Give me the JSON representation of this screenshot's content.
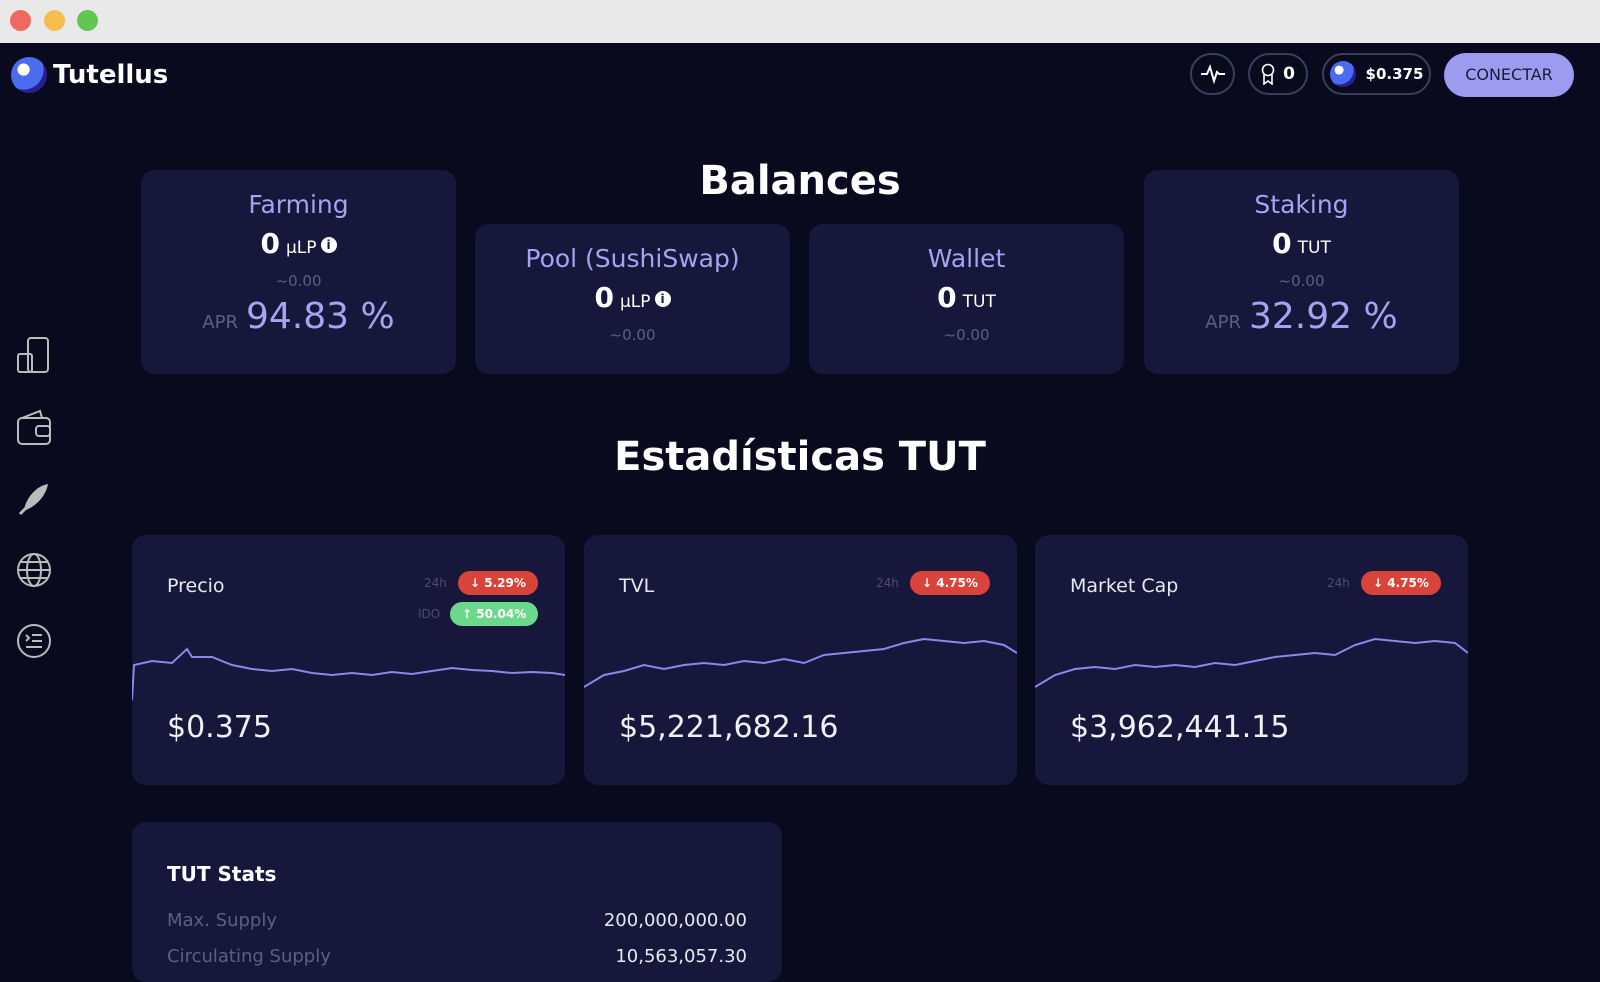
{
  "header": {
    "brand": "Tutellus",
    "badges_count": "0",
    "price": "$0.375",
    "connect": "CONECTAR"
  },
  "balances": {
    "title": "Balances",
    "cards": [
      {
        "title": "Farming",
        "amount": "0",
        "unit": "μLP",
        "approx": "~0.00",
        "apr_label": "APR",
        "apr": "94.83 %"
      },
      {
        "title": "Pool (SushiSwap)",
        "amount": "0",
        "unit": "μLP",
        "approx": "~0.00"
      },
      {
        "title": "Wallet",
        "amount": "0",
        "unit": "TUT",
        "approx": "~0.00"
      },
      {
        "title": "Staking",
        "amount": "0",
        "unit": "TUT",
        "approx": "~0.00",
        "apr_label": "APR",
        "apr": "32.92 %"
      }
    ]
  },
  "stats": {
    "title": "Estadísticas TUT",
    "cards": [
      {
        "title": "Precio",
        "period": "24h",
        "change": "↓ 5.29%",
        "ido_label": "IDO",
        "ido_change": "↑ 50.04%",
        "value": "$0.375"
      },
      {
        "title": "TVL",
        "period": "24h",
        "change": "↓ 4.75%",
        "value": "$5,221,682.16"
      },
      {
        "title": "Market Cap",
        "period": "24h",
        "change": "↓ 4.75%",
        "value": "$3,962,441.15"
      }
    ]
  },
  "tut_stats": {
    "title": "TUT Stats",
    "rows": [
      [
        "Max. Supply",
        "200,000,000.00"
      ],
      [
        "Circulating Supply",
        "10,563,057.30"
      ]
    ]
  }
}
